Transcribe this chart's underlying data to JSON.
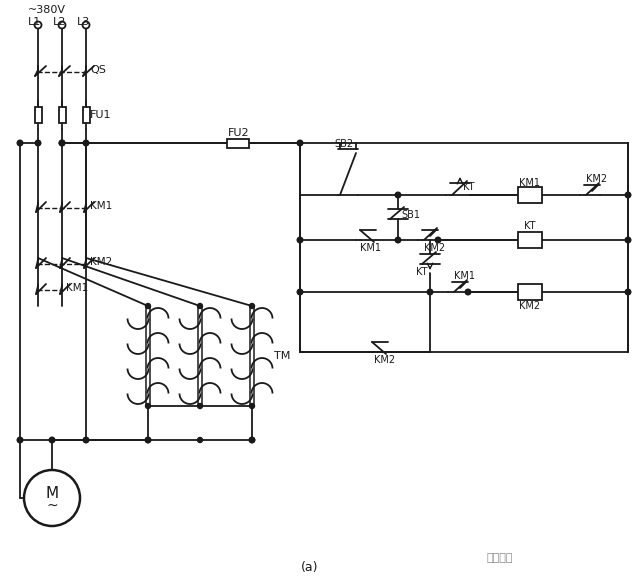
{
  "bg": "#ffffff",
  "lc": "#1a1a1a",
  "lw": 1.3,
  "title": "(a)",
  "watermark": "技成培训",
  "voltage": "~380V",
  "figsize": [
    6.4,
    5.87
  ],
  "dpi": 100
}
